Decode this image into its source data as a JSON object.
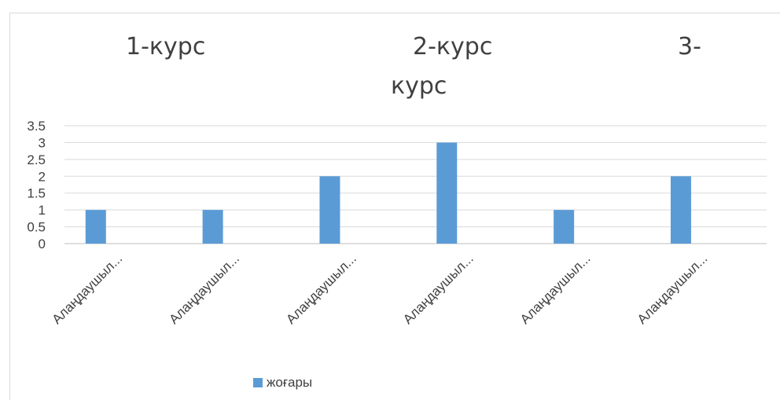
{
  "chart_data": {
    "type": "bar",
    "title_parts": [
      "1-курс",
      "2-курс",
      "3-",
      "курс"
    ],
    "categories": [
      "Алаңдаушыл...",
      "Алаңдаушыл...",
      "Алаңдаушыл...",
      "Алаңдаушыл...",
      "Алаңдаушыл...",
      "Алаңдаушыл..."
    ],
    "series": [
      {
        "name": "жоғары",
        "values": [
          1,
          1,
          2,
          3,
          1,
          2
        ],
        "color": "#5b9bd5"
      }
    ],
    "y_ticks": [
      "0",
      "0.5",
      "1",
      "1.5",
      "2",
      "2.5",
      "3",
      "3.5"
    ],
    "ylim": [
      0,
      3.5
    ],
    "grid": true,
    "legend_position": "bottom"
  }
}
